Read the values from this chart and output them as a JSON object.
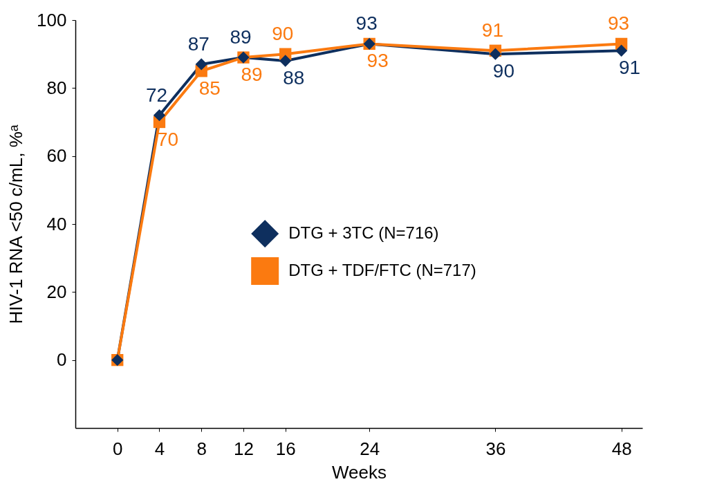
{
  "chart_data": {
    "type": "line",
    "xlabel": "Weeks",
    "ylabel": "HIV-1 RNA <50 c/mL, %ᵃ",
    "x": [
      0,
      4,
      8,
      12,
      16,
      24,
      36,
      48
    ],
    "xlim": [
      -4,
      50
    ],
    "xticks": [
      0,
      4,
      8,
      12,
      16,
      24,
      36,
      48
    ],
    "ylim": [
      -20,
      100
    ],
    "yticks": [
      0,
      20,
      40,
      60,
      80,
      100
    ],
    "grid": false,
    "legend": "right",
    "series": [
      {
        "name": "DTG + 3TC (N=716)",
        "color": "#0e2f5e",
        "marker": "diamond",
        "values": [
          0,
          72,
          87,
          89,
          88,
          93,
          90,
          91
        ],
        "value_labels": [
          null,
          "72",
          "87",
          "89",
          "88",
          "93",
          "90",
          "91"
        ]
      },
      {
        "name": "DTG + TDF/FTC (N=717)",
        "color": "#fb7a10",
        "marker": "square",
        "values": [
          0,
          70,
          85,
          89,
          90,
          93,
          91,
          93
        ],
        "value_labels": [
          null,
          "70",
          "85",
          "89",
          "90",
          "93",
          "91",
          "93"
        ]
      }
    ]
  }
}
